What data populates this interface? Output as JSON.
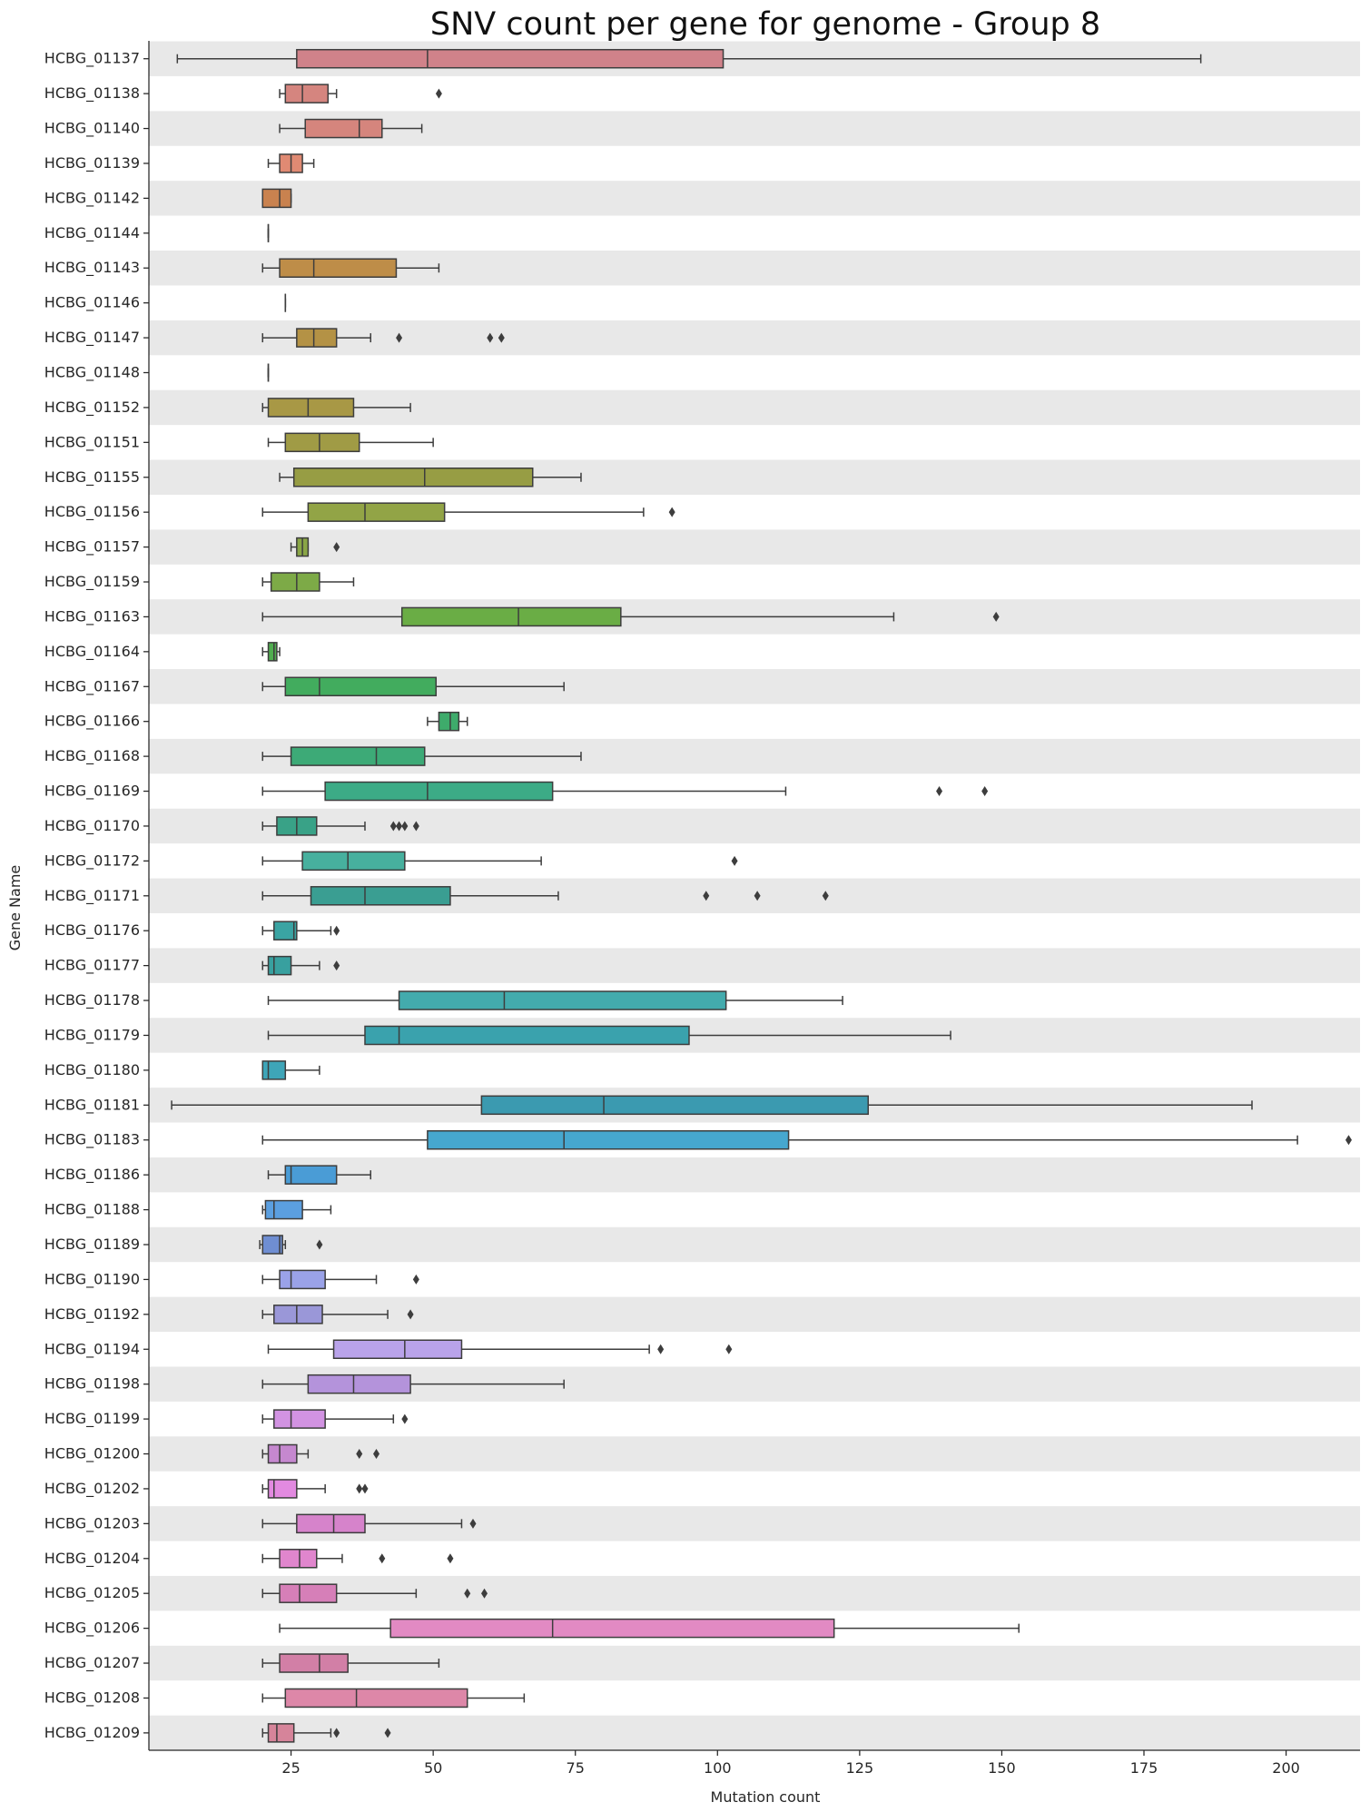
{
  "chart_data": {
    "type": "boxplot",
    "orientation": "horizontal",
    "title": "SNV count per gene for genome - Group 8",
    "xlabel": "Mutation count",
    "ylabel": "Gene Name",
    "xlim": [
      0,
      213
    ],
    "xticks": [
      25,
      50,
      75,
      100,
      125,
      150,
      175,
      200
    ],
    "row_stripes": true,
    "stripe_color": "#e8e8e8",
    "categories": [
      "HCBG_01137",
      "HCBG_01138",
      "HCBG_01140",
      "HCBG_01139",
      "HCBG_01142",
      "HCBG_01144",
      "HCBG_01143",
      "HCBG_01146",
      "HCBG_01147",
      "HCBG_01148",
      "HCBG_01152",
      "HCBG_01151",
      "HCBG_01155",
      "HCBG_01156",
      "HCBG_01157",
      "HCBG_01159",
      "HCBG_01163",
      "HCBG_01164",
      "HCBG_01167",
      "HCBG_01166",
      "HCBG_01168",
      "HCBG_01169",
      "HCBG_01170",
      "HCBG_01172",
      "HCBG_01171",
      "HCBG_01176",
      "HCBG_01177",
      "HCBG_01178",
      "HCBG_01179",
      "HCBG_01180",
      "HCBG_01181",
      "HCBG_01183",
      "HCBG_01186",
      "HCBG_01188",
      "HCBG_01189",
      "HCBG_01190",
      "HCBG_01192",
      "HCBG_01194",
      "HCBG_01198",
      "HCBG_01199",
      "HCBG_01200",
      "HCBG_01202",
      "HCBG_01203",
      "HCBG_01204",
      "HCBG_01205",
      "HCBG_01206",
      "HCBG_01207",
      "HCBG_01208",
      "HCBG_01209"
    ],
    "boxes": [
      {
        "min": 5,
        "q1": 26,
        "median": 49,
        "q3": 101,
        "max": 185,
        "outliers": [],
        "color": "#d0828a"
      },
      {
        "min": 23,
        "q1": 24,
        "median": 27,
        "q3": 31.5,
        "max": 33,
        "outliers": [
          51
        ],
        "color": "#d5857f"
      },
      {
        "min": 23,
        "q1": 27.5,
        "median": 37,
        "q3": 41,
        "max": 48,
        "outliers": [],
        "color": "#d5857d"
      },
      {
        "min": 21,
        "q1": 23,
        "median": 25,
        "q3": 27,
        "max": 29,
        "outliers": [],
        "color": "#e08a73"
      },
      {
        "min": 20,
        "q1": 20,
        "median": 23,
        "q3": 25,
        "max": 25,
        "outliers": [],
        "color": "#c9824f"
      },
      {
        "min": 21,
        "q1": 21,
        "median": 21,
        "q3": 21,
        "max": 21,
        "outliers": [],
        "color": "#c7864d"
      },
      {
        "min": 20,
        "q1": 23,
        "median": 29,
        "q3": 43.5,
        "max": 51,
        "outliers": [],
        "color": "#be8d48"
      },
      {
        "min": 24,
        "q1": 24,
        "median": 24,
        "q3": 24,
        "max": 24,
        "outliers": [],
        "color": "#b99046"
      },
      {
        "min": 20,
        "q1": 26,
        "median": 29,
        "q3": 33,
        "max": 39,
        "outliers": [
          44,
          60,
          62
        ],
        "color": "#b49245"
      },
      {
        "min": 21,
        "q1": 21,
        "median": 21,
        "q3": 21,
        "max": 21,
        "outliers": [],
        "color": "#b09444"
      },
      {
        "min": 20,
        "q1": 21,
        "median": 28,
        "q3": 36,
        "max": 46,
        "outliers": [],
        "color": "#a89845"
      },
      {
        "min": 21,
        "q1": 24,
        "median": 30,
        "q3": 37,
        "max": 50,
        "outliers": [],
        "color": "#a09b45"
      },
      {
        "min": 23,
        "q1": 25.5,
        "median": 48.5,
        "q3": 67.5,
        "max": 76,
        "outliers": [],
        "color": "#979d44"
      },
      {
        "min": 20,
        "q1": 28,
        "median": 38,
        "q3": 52,
        "max": 87,
        "outliers": [
          92
        ],
        "color": "#92a446"
      },
      {
        "min": 25,
        "q1": 26,
        "median": 27,
        "q3": 28,
        "max": 28,
        "outliers": [
          33
        ],
        "color": "#8aa646"
      },
      {
        "min": 20,
        "q1": 21.5,
        "median": 26,
        "q3": 30,
        "max": 36,
        "outliers": [],
        "color": "#7daa47"
      },
      {
        "min": 20,
        "q1": 44.5,
        "median": 65,
        "q3": 83,
        "max": 131,
        "outliers": [
          149
        ],
        "color": "#6aad45"
      },
      {
        "min": 20,
        "q1": 21,
        "median": 22,
        "q3": 22.5,
        "max": 23,
        "outliers": [],
        "color": "#50ad4f"
      },
      {
        "min": 20,
        "q1": 24,
        "median": 30,
        "q3": 50.5,
        "max": 73,
        "outliers": [],
        "color": "#42ac5e"
      },
      {
        "min": 49,
        "q1": 51,
        "median": 53,
        "q3": 54.5,
        "max": 56,
        "outliers": [],
        "color": "#3eab6b"
      },
      {
        "min": 20,
        "q1": 25,
        "median": 40,
        "q3": 48.5,
        "max": 76,
        "outliers": [],
        "color": "#3daa77"
      },
      {
        "min": 20,
        "q1": 31,
        "median": 49,
        "q3": 71,
        "max": 112,
        "outliers": [
          139,
          147
        ],
        "color": "#3cab86"
      },
      {
        "min": 20,
        "q1": 22.5,
        "median": 26,
        "q3": 29.5,
        "max": 38,
        "outliers": [
          43,
          44,
          45,
          47
        ],
        "color": "#39a287"
      },
      {
        "min": 20,
        "q1": 27,
        "median": 35,
        "q3": 45,
        "max": 69,
        "outliers": [
          103
        ],
        "color": "#47b09e"
      },
      {
        "min": 20,
        "q1": 28.5,
        "median": 38,
        "q3": 53,
        "max": 72,
        "outliers": [
          98,
          107,
          119
        ],
        "color": "#3a9e92"
      },
      {
        "min": 20,
        "q1": 22,
        "median": 25.5,
        "q3": 26,
        "max": 32,
        "outliers": [
          33
        ],
        "color": "#3aa4a3"
      },
      {
        "min": 20,
        "q1": 21,
        "median": 22,
        "q3": 25,
        "max": 30,
        "outliers": [
          33
        ],
        "color": "#38a09f"
      },
      {
        "min": 21,
        "q1": 44,
        "median": 62.5,
        "q3": 101.5,
        "max": 122,
        "outliers": [],
        "color": "#43abad"
      },
      {
        "min": 21,
        "q1": 38,
        "median": 44,
        "q3": 95,
        "max": 141,
        "outliers": [],
        "color": "#3aa2ad"
      },
      {
        "min": 20,
        "q1": 20,
        "median": 21,
        "q3": 24,
        "max": 30,
        "outliers": [],
        "color": "#3ea5b8"
      },
      {
        "min": 4,
        "q1": 58.5,
        "median": 80,
        "q3": 126.5,
        "max": 194,
        "outliers": [],
        "color": "#3b9ab0"
      },
      {
        "min": 20,
        "q1": 49,
        "median": 73,
        "q3": 112.5,
        "max": 202,
        "outliers": [
          211
        ],
        "color": "#46a7cf"
      },
      {
        "min": 21,
        "q1": 24,
        "median": 25,
        "q3": 33,
        "max": 39,
        "outliers": [],
        "color": "#4a9cd6"
      },
      {
        "min": 20,
        "q1": 20.5,
        "median": 22,
        "q3": 27,
        "max": 32,
        "outliers": [],
        "color": "#5b9fe0"
      },
      {
        "min": 19.5,
        "q1": 20,
        "median": 23,
        "q3": 23.5,
        "max": 24,
        "outliers": [
          30
        ],
        "color": "#6f8ed2"
      },
      {
        "min": 20,
        "q1": 23,
        "median": 25,
        "q3": 31,
        "max": 40,
        "outliers": [
          47
        ],
        "color": "#9aa2e8"
      },
      {
        "min": 20,
        "q1": 22,
        "median": 26,
        "q3": 30.5,
        "max": 42,
        "outliers": [
          46
        ],
        "color": "#9a97d8"
      },
      {
        "min": 21,
        "q1": 32.5,
        "median": 45,
        "q3": 55,
        "max": 88,
        "outliers": [
          90,
          102
        ],
        "color": "#b9a3ea"
      },
      {
        "min": 20,
        "q1": 28,
        "median": 36,
        "q3": 46,
        "max": 73,
        "outliers": [],
        "color": "#b493db"
      },
      {
        "min": 20,
        "q1": 22,
        "median": 25,
        "q3": 31,
        "max": 43,
        "outliers": [
          45
        ],
        "color": "#d293e2"
      },
      {
        "min": 20,
        "q1": 21,
        "median": 23,
        "q3": 26,
        "max": 28,
        "outliers": [
          37,
          40
        ],
        "color": "#c588cf"
      },
      {
        "min": 20,
        "q1": 21,
        "median": 22,
        "q3": 26,
        "max": 31,
        "outliers": [
          37,
          38
        ],
        "color": "#e28ae0"
      },
      {
        "min": 20,
        "q1": 26,
        "median": 32.5,
        "q3": 38,
        "max": 55,
        "outliers": [
          57
        ],
        "color": "#d683cb"
      },
      {
        "min": 20,
        "q1": 23,
        "median": 26.5,
        "q3": 29.5,
        "max": 34,
        "outliers": [
          41,
          53
        ],
        "color": "#e086cd"
      },
      {
        "min": 20,
        "q1": 23,
        "median": 26.5,
        "q3": 33,
        "max": 47,
        "outliers": [
          56,
          59
        ],
        "color": "#d67fb8"
      },
      {
        "min": 23,
        "q1": 42.5,
        "median": 71,
        "q3": 120.5,
        "max": 153,
        "outliers": [],
        "color": "#e28ac3"
      },
      {
        "min": 20,
        "q1": 23,
        "median": 30,
        "q3": 35,
        "max": 51,
        "outliers": [],
        "color": "#d27fa6"
      },
      {
        "min": 20,
        "q1": 24,
        "median": 36.5,
        "q3": 56,
        "max": 66,
        "outliers": [],
        "color": "#dd87a8"
      },
      {
        "min": 20,
        "q1": 21,
        "median": 22.5,
        "q3": 25.5,
        "max": 32,
        "outliers": [
          33,
          42
        ],
        "color": "#d6849a"
      }
    ]
  }
}
